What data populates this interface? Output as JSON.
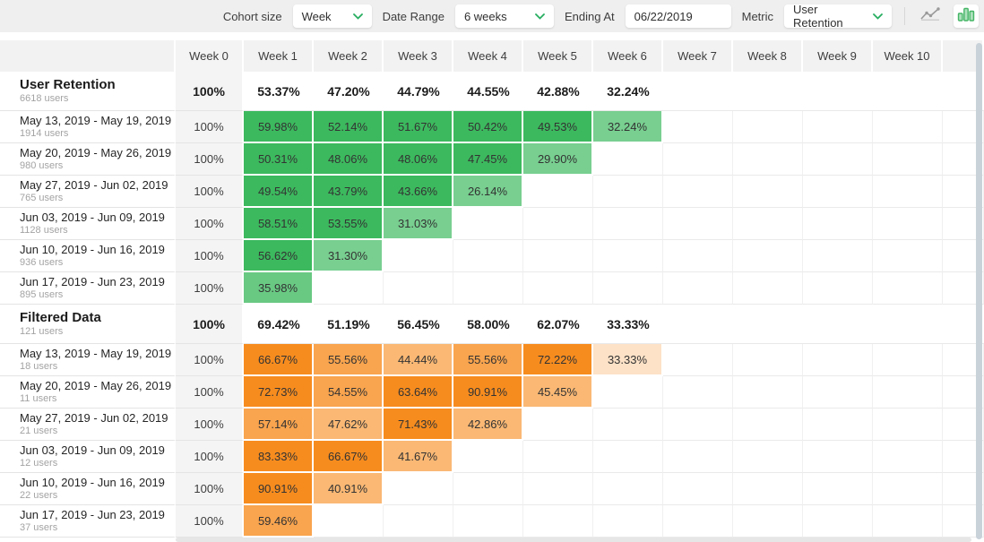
{
  "toolbar": {
    "cohort_size_label": "Cohort size",
    "cohort_size_value": "Week",
    "date_range_label": "Date Range",
    "date_range_value": "6 weeks",
    "ending_at_label": "Ending At",
    "ending_at_value": "06/22/2019",
    "metric_label": "Metric",
    "metric_value": "User Retention",
    "line_chart_icon": "line-chart",
    "bar_chart_icon": "bar-chart",
    "active_view": "bar-chart"
  },
  "colors": {
    "green": "#3cb95e",
    "orange": "#f78c1e",
    "toolbar_bg": "#efefef",
    "header_bg": "#f2f2f2",
    "chevron_green": "#27ae60",
    "scrollbar": "#c9d2d9"
  },
  "table": {
    "week_columns": [
      "Week 0",
      "Week 1",
      "Week 2",
      "Week 3",
      "Week 4",
      "Week 5",
      "Week 6",
      "Week 7",
      "Week 8",
      "Week 9",
      "Week 10"
    ],
    "sections": [
      {
        "title": "User Retention",
        "subtitle": "6618 users",
        "color": "green",
        "summary": [
          100,
          53.37,
          47.2,
          44.79,
          44.55,
          42.88,
          32.24
        ],
        "rows": [
          {
            "label": "May 13, 2019 - May 19, 2019",
            "users": "1914 users",
            "values": [
              100,
              59.98,
              52.14,
              51.67,
              50.42,
              49.53,
              32.24
            ]
          },
          {
            "label": "May 20, 2019 - May 26, 2019",
            "users": "980 users",
            "values": [
              100,
              50.31,
              48.06,
              48.06,
              47.45,
              29.9
            ]
          },
          {
            "label": "May 27, 2019 - Jun 02, 2019",
            "users": "765 users",
            "values": [
              100,
              49.54,
              43.79,
              43.66,
              26.14
            ]
          },
          {
            "label": "Jun 03, 2019 - Jun 09, 2019",
            "users": "1128 users",
            "values": [
              100,
              58.51,
              53.55,
              31.03
            ]
          },
          {
            "label": "Jun 10, 2019 - Jun 16, 2019",
            "users": "936 users",
            "values": [
              100,
              56.62,
              31.3
            ]
          },
          {
            "label": "Jun 17, 2019 - Jun 23, 2019",
            "users": "895 users",
            "values": [
              100,
              35.98
            ]
          }
        ]
      },
      {
        "title": "Filtered Data",
        "subtitle": "121 users",
        "color": "orange",
        "summary": [
          100,
          69.42,
          51.19,
          56.45,
          58.0,
          62.07,
          33.33
        ],
        "rows": [
          {
            "label": "May 13, 2019 - May 19, 2019",
            "users": "18 users",
            "values": [
              100,
              66.67,
              55.56,
              44.44,
              55.56,
              72.22,
              33.33
            ]
          },
          {
            "label": "May 20, 2019 - May 26, 2019",
            "users": "11 users",
            "values": [
              100,
              72.73,
              54.55,
              63.64,
              90.91,
              45.45
            ]
          },
          {
            "label": "May 27, 2019 - Jun 02, 2019",
            "users": "21 users",
            "values": [
              100,
              57.14,
              47.62,
              71.43,
              42.86
            ]
          },
          {
            "label": "Jun 03, 2019 - Jun 09, 2019",
            "users": "12 users",
            "values": [
              100,
              83.33,
              66.67,
              41.67
            ]
          },
          {
            "label": "Jun 10, 2019 - Jun 16, 2019",
            "users": "22 users",
            "values": [
              100,
              90.91,
              40.91
            ]
          },
          {
            "label": "Jun 17, 2019 - Jun 23, 2019",
            "users": "37 users",
            "values": [
              100,
              59.46
            ]
          }
        ]
      }
    ]
  }
}
